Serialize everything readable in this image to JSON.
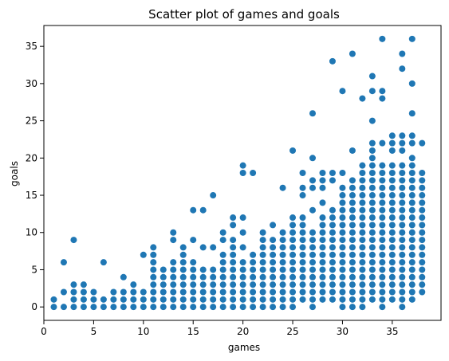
{
  "chart_data": {
    "type": "scatter",
    "title": "Scatter plot of games and goals",
    "xlabel": "games",
    "ylabel": "goals",
    "xlim": [
      0,
      39.9
    ],
    "ylim": [
      -1.8,
      37.8
    ],
    "xticks": [
      0,
      5,
      10,
      15,
      20,
      25,
      30,
      35
    ],
    "yticks": [
      0,
      5,
      10,
      15,
      20,
      25,
      30,
      35
    ],
    "grid": false,
    "marker_color": "#1f77b4",
    "points": [
      [
        1,
        0
      ],
      [
        1,
        1
      ],
      [
        2,
        0
      ],
      [
        2,
        2
      ],
      [
        2,
        6
      ],
      [
        3,
        0
      ],
      [
        3,
        1
      ],
      [
        3,
        2
      ],
      [
        3,
        3
      ],
      [
        3,
        9
      ],
      [
        4,
        0
      ],
      [
        4,
        1
      ],
      [
        4,
        2
      ],
      [
        4,
        3
      ],
      [
        5,
        0
      ],
      [
        5,
        1
      ],
      [
        5,
        2
      ],
      [
        6,
        0
      ],
      [
        6,
        1
      ],
      [
        6,
        6
      ],
      [
        7,
        0
      ],
      [
        7,
        1
      ],
      [
        7,
        2
      ],
      [
        8,
        0
      ],
      [
        8,
        1
      ],
      [
        8,
        2
      ],
      [
        8,
        4
      ],
      [
        9,
        0
      ],
      [
        9,
        1
      ],
      [
        9,
        2
      ],
      [
        9,
        3
      ],
      [
        10,
        0
      ],
      [
        10,
        1
      ],
      [
        10,
        2
      ],
      [
        10,
        7
      ],
      [
        11,
        0
      ],
      [
        11,
        1
      ],
      [
        11,
        2
      ],
      [
        11,
        3
      ],
      [
        11,
        4
      ],
      [
        11,
        5
      ],
      [
        11,
        6
      ],
      [
        11,
        7
      ],
      [
        11,
        8
      ],
      [
        12,
        0
      ],
      [
        12,
        1
      ],
      [
        12,
        2
      ],
      [
        12,
        3
      ],
      [
        12,
        4
      ],
      [
        12,
        5
      ],
      [
        13,
        0
      ],
      [
        13,
        1
      ],
      [
        13,
        2
      ],
      [
        13,
        3
      ],
      [
        13,
        4
      ],
      [
        13,
        5
      ],
      [
        13,
        6
      ],
      [
        13,
        9
      ],
      [
        13,
        10
      ],
      [
        14,
        0
      ],
      [
        14,
        1
      ],
      [
        14,
        2
      ],
      [
        14,
        3
      ],
      [
        14,
        4
      ],
      [
        14,
        5
      ],
      [
        14,
        6
      ],
      [
        14,
        7
      ],
      [
        14,
        8
      ],
      [
        15,
        0
      ],
      [
        15,
        1
      ],
      [
        15,
        2
      ],
      [
        15,
        3
      ],
      [
        15,
        4
      ],
      [
        15,
        5
      ],
      [
        15,
        6
      ],
      [
        15,
        9
      ],
      [
        15,
        13
      ],
      [
        16,
        0
      ],
      [
        16,
        1
      ],
      [
        16,
        2
      ],
      [
        16,
        3
      ],
      [
        16,
        4
      ],
      [
        16,
        5
      ],
      [
        16,
        8
      ],
      [
        16,
        13
      ],
      [
        17,
        0
      ],
      [
        17,
        1
      ],
      [
        17,
        2
      ],
      [
        17,
        3
      ],
      [
        17,
        4
      ],
      [
        17,
        5
      ],
      [
        17,
        8
      ],
      [
        17,
        15
      ],
      [
        18,
        0
      ],
      [
        18,
        1
      ],
      [
        18,
        2
      ],
      [
        18,
        3
      ],
      [
        18,
        4
      ],
      [
        18,
        5
      ],
      [
        18,
        6
      ],
      [
        18,
        7
      ],
      [
        18,
        9
      ],
      [
        18,
        10
      ],
      [
        19,
        0
      ],
      [
        19,
        1
      ],
      [
        19,
        2
      ],
      [
        19,
        3
      ],
      [
        19,
        4
      ],
      [
        19,
        5
      ],
      [
        19,
        6
      ],
      [
        19,
        7
      ],
      [
        19,
        8
      ],
      [
        19,
        9
      ],
      [
        19,
        11
      ],
      [
        19,
        12
      ],
      [
        20,
        0
      ],
      [
        20,
        1
      ],
      [
        20,
        2
      ],
      [
        20,
        3
      ],
      [
        20,
        4
      ],
      [
        20,
        5
      ],
      [
        20,
        6
      ],
      [
        20,
        8
      ],
      [
        20,
        10
      ],
      [
        20,
        12
      ],
      [
        20,
        18
      ],
      [
        20,
        19
      ],
      [
        21,
        0
      ],
      [
        21,
        1
      ],
      [
        21,
        2
      ],
      [
        21,
        3
      ],
      [
        21,
        4
      ],
      [
        21,
        5
      ],
      [
        21,
        6
      ],
      [
        21,
        7
      ],
      [
        21,
        18
      ],
      [
        22,
        0
      ],
      [
        22,
        1
      ],
      [
        22,
        2
      ],
      [
        22,
        3
      ],
      [
        22,
        4
      ],
      [
        22,
        5
      ],
      [
        22,
        6
      ],
      [
        22,
        7
      ],
      [
        22,
        8
      ],
      [
        22,
        9
      ],
      [
        22,
        10
      ],
      [
        23,
        0
      ],
      [
        23,
        1
      ],
      [
        23,
        2
      ],
      [
        23,
        3
      ],
      [
        23,
        4
      ],
      [
        23,
        5
      ],
      [
        23,
        6
      ],
      [
        23,
        7
      ],
      [
        23,
        8
      ],
      [
        23,
        9
      ],
      [
        23,
        11
      ],
      [
        24,
        0
      ],
      [
        24,
        1
      ],
      [
        24,
        2
      ],
      [
        24,
        3
      ],
      [
        24,
        4
      ],
      [
        24,
        5
      ],
      [
        24,
        6
      ],
      [
        24,
        7
      ],
      [
        24,
        8
      ],
      [
        24,
        9
      ],
      [
        24,
        10
      ],
      [
        24,
        16
      ],
      [
        25,
        0
      ],
      [
        25,
        1
      ],
      [
        25,
        2
      ],
      [
        25,
        3
      ],
      [
        25,
        4
      ],
      [
        25,
        5
      ],
      [
        25,
        6
      ],
      [
        25,
        7
      ],
      [
        25,
        8
      ],
      [
        25,
        9
      ],
      [
        25,
        10
      ],
      [
        25,
        11
      ],
      [
        25,
        12
      ],
      [
        25,
        21
      ],
      [
        26,
        1
      ],
      [
        26,
        2
      ],
      [
        26,
        3
      ],
      [
        26,
        4
      ],
      [
        26,
        5
      ],
      [
        26,
        6
      ],
      [
        26,
        7
      ],
      [
        26,
        8
      ],
      [
        26,
        9
      ],
      [
        26,
        10
      ],
      [
        26,
        11
      ],
      [
        26,
        12
      ],
      [
        26,
        15
      ],
      [
        26,
        16
      ],
      [
        26,
        18
      ],
      [
        27,
        0
      ],
      [
        27,
        1
      ],
      [
        27,
        2
      ],
      [
        27,
        3
      ],
      [
        27,
        4
      ],
      [
        27,
        5
      ],
      [
        27,
        6
      ],
      [
        27,
        7
      ],
      [
        27,
        8
      ],
      [
        27,
        9
      ],
      [
        27,
        10
      ],
      [
        27,
        13
      ],
      [
        27,
        16
      ],
      [
        27,
        17
      ],
      [
        27,
        20
      ],
      [
        27,
        26
      ],
      [
        28,
        1
      ],
      [
        28,
        2
      ],
      [
        28,
        3
      ],
      [
        28,
        4
      ],
      [
        28,
        5
      ],
      [
        28,
        6
      ],
      [
        28,
        7
      ],
      [
        28,
        8
      ],
      [
        28,
        9
      ],
      [
        28,
        10
      ],
      [
        28,
        11
      ],
      [
        28,
        12
      ],
      [
        28,
        14
      ],
      [
        28,
        16
      ],
      [
        28,
        17
      ],
      [
        28,
        18
      ],
      [
        29,
        1
      ],
      [
        29,
        2
      ],
      [
        29,
        3
      ],
      [
        29,
        4
      ],
      [
        29,
        5
      ],
      [
        29,
        6
      ],
      [
        29,
        7
      ],
      [
        29,
        8
      ],
      [
        29,
        9
      ],
      [
        29,
        10
      ],
      [
        29,
        11
      ],
      [
        29,
        12
      ],
      [
        29,
        13
      ],
      [
        29,
        17
      ],
      [
        29,
        18
      ],
      [
        29,
        33
      ],
      [
        30,
        0
      ],
      [
        30,
        1
      ],
      [
        30,
        2
      ],
      [
        30,
        3
      ],
      [
        30,
        4
      ],
      [
        30,
        5
      ],
      [
        30,
        6
      ],
      [
        30,
        7
      ],
      [
        30,
        8
      ],
      [
        30,
        9
      ],
      [
        30,
        10
      ],
      [
        30,
        11
      ],
      [
        30,
        12
      ],
      [
        30,
        13
      ],
      [
        30,
        14
      ],
      [
        30,
        15
      ],
      [
        30,
        16
      ],
      [
        30,
        18
      ],
      [
        30,
        29
      ],
      [
        31,
        0
      ],
      [
        31,
        1
      ],
      [
        31,
        2
      ],
      [
        31,
        3
      ],
      [
        31,
        4
      ],
      [
        31,
        5
      ],
      [
        31,
        6
      ],
      [
        31,
        7
      ],
      [
        31,
        8
      ],
      [
        31,
        9
      ],
      [
        31,
        10
      ],
      [
        31,
        11
      ],
      [
        31,
        12
      ],
      [
        31,
        13
      ],
      [
        31,
        14
      ],
      [
        31,
        15
      ],
      [
        31,
        16
      ],
      [
        31,
        17
      ],
      [
        31,
        21
      ],
      [
        31,
        34
      ],
      [
        32,
        0
      ],
      [
        32,
        1
      ],
      [
        32,
        2
      ],
      [
        32,
        3
      ],
      [
        32,
        4
      ],
      [
        32,
        5
      ],
      [
        32,
        6
      ],
      [
        32,
        7
      ],
      [
        32,
        8
      ],
      [
        32,
        9
      ],
      [
        32,
        10
      ],
      [
        32,
        11
      ],
      [
        32,
        12
      ],
      [
        32,
        13
      ],
      [
        32,
        14
      ],
      [
        32,
        15
      ],
      [
        32,
        16
      ],
      [
        32,
        17
      ],
      [
        32,
        18
      ],
      [
        32,
        19
      ],
      [
        32,
        28
      ],
      [
        33,
        1
      ],
      [
        33,
        2
      ],
      [
        33,
        3
      ],
      [
        33,
        4
      ],
      [
        33,
        5
      ],
      [
        33,
        6
      ],
      [
        33,
        7
      ],
      [
        33,
        8
      ],
      [
        33,
        9
      ],
      [
        33,
        10
      ],
      [
        33,
        11
      ],
      [
        33,
        12
      ],
      [
        33,
        13
      ],
      [
        33,
        14
      ],
      [
        33,
        15
      ],
      [
        33,
        16
      ],
      [
        33,
        17
      ],
      [
        33,
        18
      ],
      [
        33,
        19
      ],
      [
        33,
        20
      ],
      [
        33,
        21
      ],
      [
        33,
        22
      ],
      [
        33,
        25
      ],
      [
        33,
        29
      ],
      [
        33,
        31
      ],
      [
        34,
        0
      ],
      [
        34,
        1
      ],
      [
        34,
        2
      ],
      [
        34,
        3
      ],
      [
        34,
        4
      ],
      [
        34,
        5
      ],
      [
        34,
        6
      ],
      [
        34,
        7
      ],
      [
        34,
        8
      ],
      [
        34,
        9
      ],
      [
        34,
        10
      ],
      [
        34,
        11
      ],
      [
        34,
        12
      ],
      [
        34,
        13
      ],
      [
        34,
        14
      ],
      [
        34,
        15
      ],
      [
        34,
        16
      ],
      [
        34,
        17
      ],
      [
        34,
        18
      ],
      [
        34,
        19
      ],
      [
        34,
        22
      ],
      [
        34,
        28
      ],
      [
        34,
        29
      ],
      [
        34,
        36
      ],
      [
        35,
        1
      ],
      [
        35,
        2
      ],
      [
        35,
        3
      ],
      [
        35,
        4
      ],
      [
        35,
        5
      ],
      [
        35,
        6
      ],
      [
        35,
        7
      ],
      [
        35,
        8
      ],
      [
        35,
        9
      ],
      [
        35,
        10
      ],
      [
        35,
        11
      ],
      [
        35,
        12
      ],
      [
        35,
        13
      ],
      [
        35,
        14
      ],
      [
        35,
        15
      ],
      [
        35,
        16
      ],
      [
        35,
        17
      ],
      [
        35,
        18
      ],
      [
        35,
        19
      ],
      [
        35,
        21
      ],
      [
        35,
        22
      ],
      [
        35,
        23
      ],
      [
        36,
        0
      ],
      [
        36,
        1
      ],
      [
        36,
        2
      ],
      [
        36,
        3
      ],
      [
        36,
        4
      ],
      [
        36,
        5
      ],
      [
        36,
        6
      ],
      [
        36,
        7
      ],
      [
        36,
        8
      ],
      [
        36,
        9
      ],
      [
        36,
        10
      ],
      [
        36,
        11
      ],
      [
        36,
        12
      ],
      [
        36,
        13
      ],
      [
        36,
        14
      ],
      [
        36,
        15
      ],
      [
        36,
        16
      ],
      [
        36,
        17
      ],
      [
        36,
        18
      ],
      [
        36,
        19
      ],
      [
        36,
        21
      ],
      [
        36,
        22
      ],
      [
        36,
        23
      ],
      [
        36,
        32
      ],
      [
        36,
        34
      ],
      [
        37,
        1
      ],
      [
        37,
        2
      ],
      [
        37,
        3
      ],
      [
        37,
        4
      ],
      [
        37,
        5
      ],
      [
        37,
        6
      ],
      [
        37,
        7
      ],
      [
        37,
        8
      ],
      [
        37,
        9
      ],
      [
        37,
        10
      ],
      [
        37,
        11
      ],
      [
        37,
        12
      ],
      [
        37,
        13
      ],
      [
        37,
        14
      ],
      [
        37,
        15
      ],
      [
        37,
        16
      ],
      [
        37,
        17
      ],
      [
        37,
        18
      ],
      [
        37,
        19
      ],
      [
        37,
        20
      ],
      [
        37,
        22
      ],
      [
        37,
        23
      ],
      [
        37,
        26
      ],
      [
        37,
        30
      ],
      [
        37,
        36
      ],
      [
        38,
        2
      ],
      [
        38,
        3
      ],
      [
        38,
        4
      ],
      [
        38,
        5
      ],
      [
        38,
        6
      ],
      [
        38,
        7
      ],
      [
        38,
        8
      ],
      [
        38,
        9
      ],
      [
        38,
        10
      ],
      [
        38,
        11
      ],
      [
        38,
        12
      ],
      [
        38,
        13
      ],
      [
        38,
        14
      ],
      [
        38,
        15
      ],
      [
        38,
        16
      ],
      [
        38,
        17
      ],
      [
        38,
        18
      ],
      [
        38,
        22
      ]
    ]
  }
}
